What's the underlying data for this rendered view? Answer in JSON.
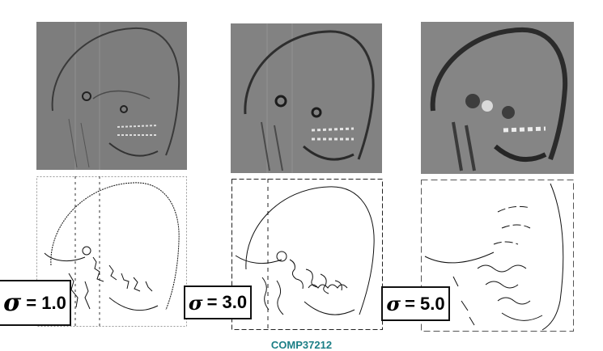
{
  "labels": [
    {
      "symbol": "σ",
      "text": "= 1.0"
    },
    {
      "symbol": "σ",
      "text": "= 3.0"
    },
    {
      "symbol": "σ",
      "text": "= 5.0"
    }
  ],
  "footer": {
    "text": "COMP37212"
  },
  "colors": {
    "footer": "#1b7f86",
    "xray_background": "#7f7f7f"
  }
}
